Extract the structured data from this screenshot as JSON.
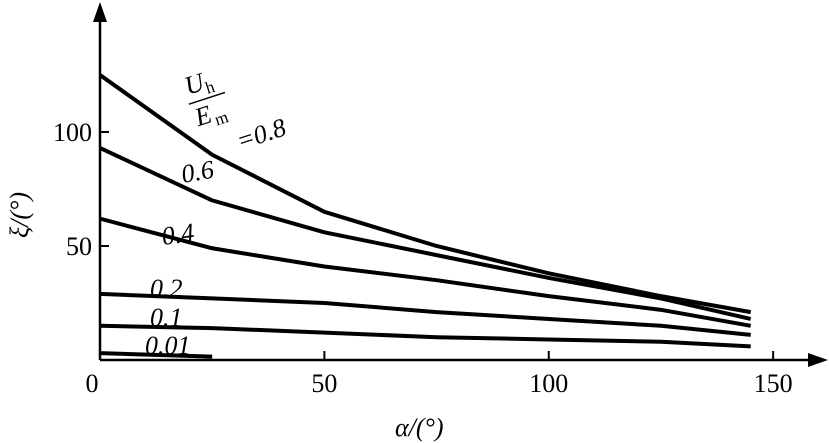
{
  "chart_data": {
    "type": "line",
    "x_label": "α/(°)",
    "y_label": "ξ/(°)",
    "ratio_label": {
      "numerator": "U",
      "numerator_sub": "h",
      "denominator": "E",
      "denominator_sub": "m"
    },
    "x": [
      0,
      25,
      50,
      75,
      100,
      125,
      145
    ],
    "series": [
      {
        "name": "=0.8",
        "color": "#000000",
        "values": [
          125,
          90,
          65,
          50,
          38,
          28,
          21
        ]
      },
      {
        "name": "0.6",
        "color": "#000000",
        "values": [
          93,
          70,
          56,
          46,
          36,
          27,
          18
        ]
      },
      {
        "name": "0.4",
        "color": "#000000",
        "values": [
          62,
          49,
          41,
          35,
          28,
          22,
          15
        ]
      },
      {
        "name": "0.2",
        "color": "#000000",
        "values": [
          29,
          27,
          25,
          21,
          18,
          15,
          11
        ]
      },
      {
        "name": "0.1",
        "color": "#000000",
        "values": [
          15,
          14,
          12,
          10,
          9,
          8,
          6
        ]
      },
      {
        "name": "0.01",
        "color": "#000000",
        "values": [
          3,
          1.5,
          null,
          null,
          null,
          null,
          null
        ]
      }
    ],
    "xlim": [
      0,
      162
    ],
    "ylim": [
      0,
      157
    ],
    "xticks": [
      0,
      50,
      100,
      150
    ],
    "yticks": [
      50,
      100
    ],
    "grid": false
  }
}
